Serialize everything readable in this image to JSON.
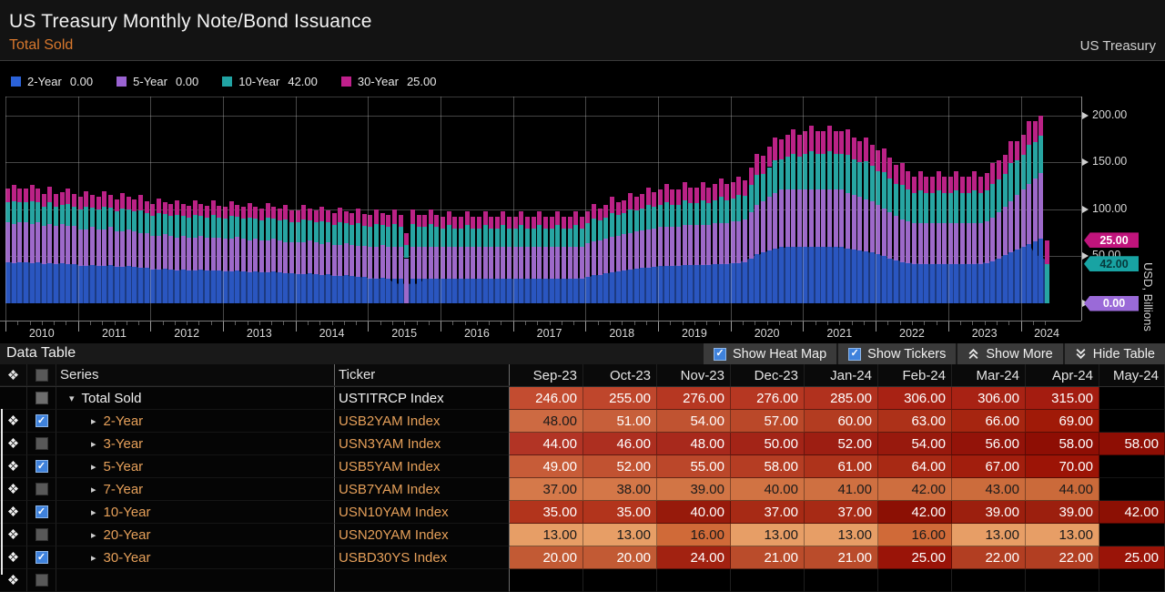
{
  "header": {
    "title": "US Treasury Monthly Note/Bond Issuance",
    "subtitle": "Total Sold",
    "source": "US Treasury"
  },
  "legend": [
    {
      "label": "2-Year",
      "value": "0.00",
      "color": "#2b62d9"
    },
    {
      "label": "5-Year",
      "value": "0.00",
      "color": "#9a63d2"
    },
    {
      "label": "10-Year",
      "value": "42.00",
      "color": "#21a3a3"
    },
    {
      "label": "30-Year",
      "value": "25.00",
      "color": "#c0208c"
    }
  ],
  "chart_data": {
    "type": "bar",
    "stacked": true,
    "title": "US Treasury Monthly Note/Bond Issuance - Total Sold",
    "xlabel": "",
    "ylabel": "USD, Billions",
    "ylim": [
      0,
      220
    ],
    "x_start": "2010-01",
    "x_end": "2024-05",
    "frequency": "monthly",
    "x_year_labels": [
      "2010",
      "2011",
      "2012",
      "2013",
      "2014",
      "2015",
      "2016",
      "2017",
      "2018",
      "2019",
      "2020",
      "2021",
      "2022",
      "2023",
      "2024"
    ],
    "y_ticks": [
      {
        "label": "200.00",
        "value": 200
      },
      {
        "label": "150.00",
        "value": 150
      },
      {
        "label": "100.00",
        "value": 100
      },
      {
        "label": "50.00",
        "value": 50
      },
      {
        "label": "0.00",
        "value": 0
      }
    ],
    "last_value_tags": [
      {
        "text": "25.00",
        "value_at": 67,
        "color": "#c0147c",
        "text_color": "#ffffff"
      },
      {
        "text": "42.00",
        "value_at": 42,
        "color": "#18a3a3",
        "text_color": "#06393b"
      },
      {
        "text": "0.00",
        "value_at": 0,
        "color": "#9a6ad8",
        "text_color": "#ffffff"
      }
    ],
    "area_overlay": {
      "series": "2-Year",
      "color": "#1c3a80"
    },
    "series": [
      {
        "name": "2-Year",
        "color": "#2a56c0",
        "values": [
          44,
          43,
          44,
          44,
          43,
          44,
          42,
          43,
          42,
          43,
          42,
          42,
          40,
          40,
          41,
          40,
          40,
          41,
          39,
          39,
          40,
          39,
          38,
          38,
          36,
          36,
          37,
          36,
          35,
          36,
          35,
          35,
          36,
          35,
          35,
          35,
          34,
          34,
          35,
          34,
          33,
          34,
          33,
          33,
          34,
          33,
          32,
          32,
          31,
          31,
          32,
          31,
          30,
          31,
          29,
          29,
          30,
          29,
          28,
          28,
          26,
          26,
          27,
          26,
          26,
          26,
          0,
          26,
          26,
          26,
          26,
          26,
          26,
          26,
          26,
          26,
          26,
          26,
          26,
          26,
          26,
          26,
          26,
          26,
          26,
          26,
          26,
          26,
          26,
          26,
          26,
          26,
          26,
          26,
          26,
          26,
          28,
          30,
          30,
          32,
          33,
          34,
          35,
          36,
          37,
          38,
          38,
          39,
          40,
          40,
          40,
          40,
          41,
          41,
          41,
          41,
          41,
          42,
          42,
          42,
          43,
          43,
          44,
          48,
          52,
          54,
          56,
          58,
          60,
          60,
          60,
          60,
          60,
          60,
          60,
          60,
          60,
          60,
          60,
          58,
          57,
          56,
          55,
          54,
          52,
          50,
          48,
          46,
          44,
          43,
          42,
          42,
          42,
          42,
          42,
          42,
          42,
          42,
          42,
          42,
          42,
          42,
          43,
          45,
          48,
          51,
          54,
          57,
          60,
          63,
          66,
          69,
          0
        ]
      },
      {
        "name": "5-Year",
        "color": "#9d69c9",
        "values": [
          42,
          41,
          42,
          42,
          41,
          42,
          40,
          41,
          40,
          41,
          40,
          40,
          39,
          39,
          40,
          39,
          39,
          40,
          38,
          38,
          39,
          38,
          37,
          37,
          36,
          36,
          37,
          36,
          35,
          36,
          35,
          35,
          36,
          35,
          35,
          35,
          35,
          35,
          36,
          35,
          34,
          35,
          34,
          34,
          35,
          34,
          33,
          33,
          34,
          34,
          35,
          34,
          33,
          34,
          33,
          33,
          34,
          33,
          33,
          33,
          34,
          34,
          35,
          34,
          34,
          34,
          48,
          34,
          34,
          34,
          34,
          34,
          34,
          34,
          34,
          34,
          34,
          34,
          34,
          34,
          34,
          34,
          34,
          34,
          34,
          34,
          34,
          34,
          34,
          34,
          34,
          34,
          34,
          34,
          34,
          34,
          36,
          36,
          37,
          37,
          38,
          38,
          39,
          39,
          40,
          40,
          41,
          41,
          41,
          41,
          41,
          41,
          42,
          42,
          42,
          42,
          42,
          43,
          43,
          43,
          44,
          44,
          45,
          49,
          53,
          55,
          57,
          59,
          61,
          61,
          61,
          61,
          61,
          61,
          61,
          61,
          61,
          61,
          61,
          59,
          58,
          57,
          56,
          55,
          53,
          51,
          49,
          47,
          45,
          44,
          43,
          43,
          43,
          43,
          43,
          43,
          43,
          43,
          43,
          43,
          43,
          43,
          44,
          46,
          49,
          52,
          55,
          58,
          61,
          64,
          67,
          70,
          0
        ]
      },
      {
        "name": "10-Year",
        "color": "#27a5a2",
        "values": [
          22,
          25,
          22,
          22,
          25,
          22,
          21,
          24,
          21,
          21,
          24,
          21,
          21,
          24,
          21,
          21,
          24,
          21,
          21,
          24,
          21,
          21,
          24,
          21,
          21,
          24,
          21,
          21,
          24,
          21,
          21,
          24,
          21,
          21,
          24,
          21,
          21,
          24,
          21,
          21,
          24,
          21,
          21,
          24,
          21,
          21,
          24,
          21,
          21,
          24,
          21,
          21,
          24,
          21,
          21,
          24,
          21,
          21,
          24,
          21,
          21,
          24,
          21,
          21,
          24,
          21,
          14,
          24,
          21,
          21,
          24,
          21,
          20,
          23,
          20,
          20,
          23,
          20,
          20,
          23,
          20,
          20,
          23,
          20,
          20,
          23,
          20,
          20,
          23,
          20,
          20,
          23,
          20,
          20,
          23,
          20,
          21,
          24,
          21,
          22,
          25,
          22,
          22,
          25,
          22,
          23,
          26,
          23,
          24,
          27,
          24,
          24,
          27,
          24,
          24,
          27,
          24,
          25,
          28,
          25,
          25,
          28,
          25,
          29,
          32,
          29,
          32,
          35,
          32,
          35,
          38,
          35,
          38,
          41,
          38,
          38,
          41,
          38,
          38,
          41,
          38,
          37,
          40,
          37,
          36,
          39,
          36,
          34,
          37,
          34,
          32,
          35,
          32,
          32,
          35,
          32,
          32,
          35,
          32,
          32,
          35,
          32,
          33,
          36,
          35,
          35,
          40,
          37,
          37,
          42,
          39,
          39,
          42
        ]
      },
      {
        "name": "30-Year",
        "color": "#bb2286",
        "values": [
          14,
          17,
          14,
          14,
          17,
          14,
          13,
          16,
          13,
          13,
          16,
          13,
          13,
          16,
          13,
          13,
          16,
          13,
          13,
          16,
          13,
          13,
          16,
          13,
          13,
          16,
          13,
          13,
          16,
          13,
          13,
          16,
          13,
          13,
          16,
          13,
          13,
          16,
          13,
          13,
          16,
          13,
          13,
          16,
          13,
          13,
          16,
          13,
          13,
          16,
          13,
          13,
          16,
          13,
          13,
          16,
          13,
          13,
          16,
          13,
          13,
          16,
          13,
          13,
          16,
          13,
          13,
          16,
          13,
          13,
          16,
          13,
          12,
          15,
          12,
          12,
          15,
          12,
          12,
          15,
          12,
          12,
          15,
          12,
          12,
          15,
          12,
          12,
          15,
          12,
          12,
          15,
          12,
          12,
          15,
          12,
          13,
          16,
          13,
          14,
          17,
          14,
          14,
          17,
          14,
          15,
          18,
          15,
          16,
          19,
          16,
          16,
          19,
          16,
          16,
          19,
          16,
          17,
          20,
          17,
          17,
          20,
          17,
          19,
          22,
          19,
          22,
          25,
          22,
          23,
          26,
          23,
          24,
          27,
          24,
          24,
          27,
          24,
          24,
          27,
          24,
          23,
          26,
          23,
          22,
          25,
          22,
          20,
          23,
          20,
          18,
          21,
          18,
          18,
          21,
          18,
          18,
          21,
          18,
          18,
          21,
          18,
          19,
          22,
          20,
          20,
          24,
          21,
          21,
          25,
          22,
          22,
          25
        ]
      }
    ]
  },
  "table": {
    "toolbar": {
      "label": "Data Table",
      "show_heat_map": "Show Heat Map",
      "show_tickers": "Show Tickers",
      "show_more": "Show More",
      "hide_table": "Hide Table"
    },
    "headers": {
      "series": "Series",
      "ticker": "Ticker"
    },
    "months": [
      "Sep-23",
      "Oct-23",
      "Nov-23",
      "Dec-23",
      "Jan-24",
      "Feb-24",
      "Mar-24",
      "Apr-24",
      "May-24"
    ],
    "rows": [
      {
        "series": "Total Sold",
        "arrow": "down",
        "ticker": "USTITRCP Index",
        "checkbox": "dim",
        "movable": false,
        "total": true,
        "values": [
          246,
          255,
          276,
          276,
          285,
          306,
          306,
          315,
          null
        ],
        "heat": [
          "#c34c30",
          "#a41c10"
        ]
      },
      {
        "series": "2-Year",
        "arrow": "right",
        "ticker": "USB2YAM Index",
        "checkbox": "on",
        "movable": true,
        "values": [
          48,
          51,
          54,
          57,
          60,
          63,
          66,
          69,
          null
        ],
        "heat": [
          "#cd6a42",
          "#a01a08"
        ]
      },
      {
        "series": "3-Year",
        "arrow": "right",
        "ticker": "USN3YAM Index",
        "checkbox": "off",
        "movable": true,
        "values": [
          44,
          46,
          48,
          50,
          52,
          54,
          56,
          58,
          58
        ],
        "heat": [
          "#b23425",
          "#8e0e04"
        ]
      },
      {
        "series": "5-Year",
        "arrow": "right",
        "ticker": "USB5YAM Index",
        "checkbox": "on",
        "movable": true,
        "values": [
          49,
          52,
          55,
          58,
          61,
          64,
          67,
          70,
          null
        ],
        "heat": [
          "#c75c38",
          "#9c1406"
        ]
      },
      {
        "series": "7-Year",
        "arrow": "right",
        "ticker": "USB7YAM Index",
        "checkbox": "off",
        "movable": true,
        "values": [
          37,
          38,
          39,
          40,
          41,
          42,
          43,
          44,
          null
        ],
        "heat": [
          "#d5794a",
          "#cb6a3a"
        ]
      },
      {
        "series": "10-Year",
        "arrow": "right",
        "ticker": "USN10YAM Index",
        "checkbox": "on",
        "movable": true,
        "values": [
          35,
          35,
          40,
          37,
          37,
          42,
          39,
          39,
          42
        ],
        "heat": [
          "#b2341c",
          "#8c1004"
        ]
      },
      {
        "series": "20-Year",
        "arrow": "right",
        "ticker": "USN20YAM Index",
        "checkbox": "off",
        "movable": true,
        "values": [
          13,
          13,
          16,
          13,
          13,
          16,
          13,
          13,
          null
        ],
        "heat": [
          "#e79e66",
          "#d06a38"
        ]
      },
      {
        "series": "30-Year",
        "arrow": "right",
        "ticker": "USBD30YS Index",
        "checkbox": "on",
        "movable": true,
        "values": [
          20,
          20,
          24,
          21,
          21,
          25,
          22,
          22,
          25
        ],
        "heat": [
          "#c25a34",
          "#9a1408"
        ]
      }
    ]
  }
}
